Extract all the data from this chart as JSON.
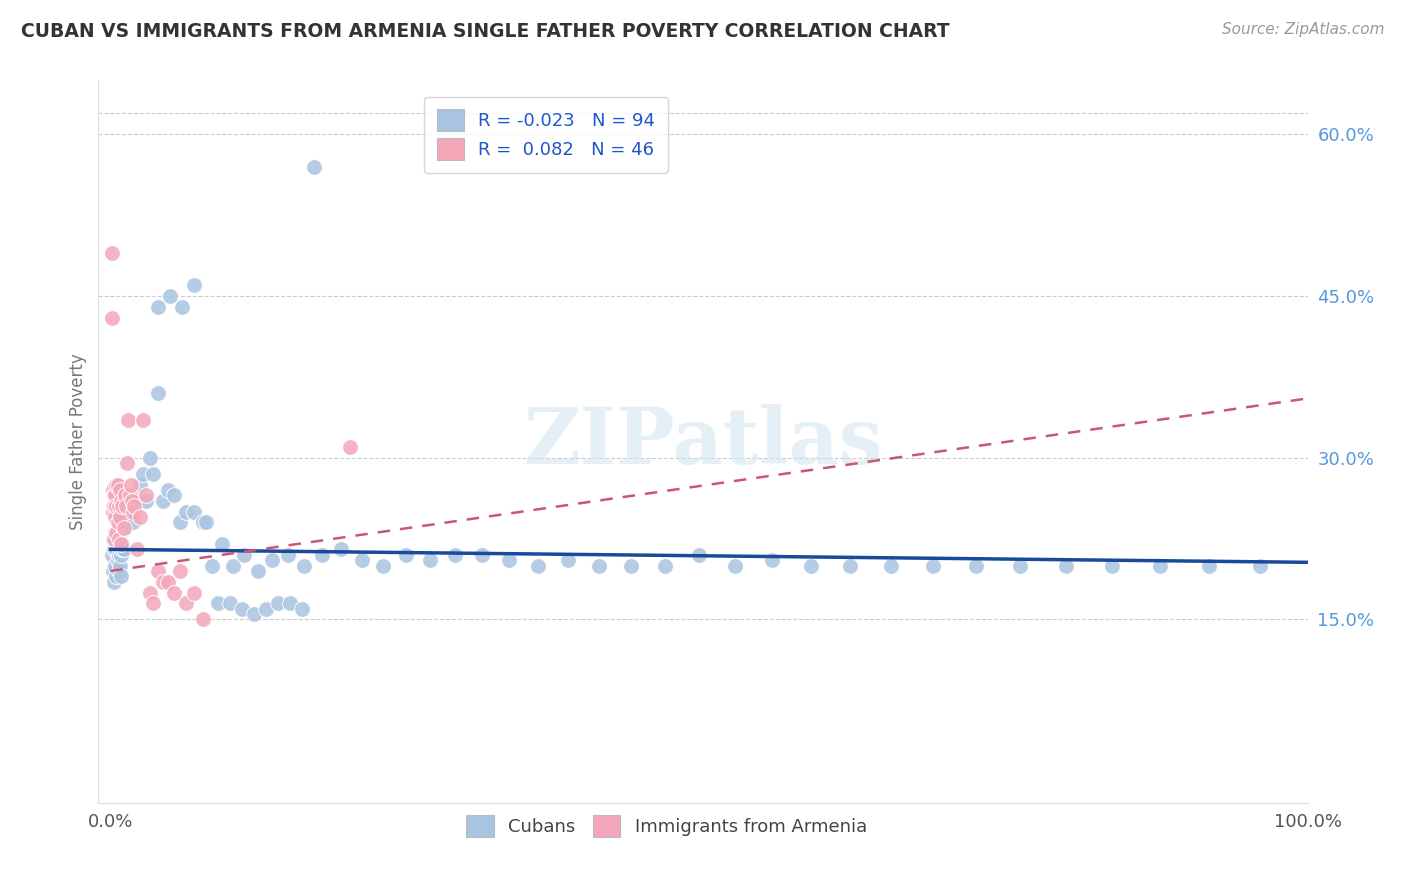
{
  "title": "CUBAN VS IMMIGRANTS FROM ARMENIA SINGLE FATHER POVERTY CORRELATION CHART",
  "source": "Source: ZipAtlas.com",
  "ylabel": "Single Father Poverty",
  "xlim": [
    -0.01,
    1.0
  ],
  "ylim": [
    -0.02,
    0.65
  ],
  "ytick_vals_right": [
    0.15,
    0.3,
    0.45,
    0.6
  ],
  "ytick_labels_right": [
    "15.0%",
    "30.0%",
    "45.0%",
    "60.0%"
  ],
  "xtick_positions": [
    0.0,
    0.25,
    0.5,
    0.75,
    1.0
  ],
  "xtick_labels": [
    "0.0%",
    "",
    "",
    "",
    "100.0%"
  ],
  "legend1_label": "R = -0.023   N = 94",
  "legend2_label": "R =  0.082   N = 46",
  "cubans_color": "#a8c4e0",
  "armenia_color": "#f4a7b9",
  "trend_cuba_color": "#1a4a9a",
  "trend_armenia_color": "#cc5577",
  "watermark": "ZIPatlas",
  "cubans_x": [
    0.001,
    0.002,
    0.002,
    0.003,
    0.003,
    0.004,
    0.004,
    0.005,
    0.005,
    0.006,
    0.006,
    0.007,
    0.007,
    0.008,
    0.008,
    0.009,
    0.009,
    0.01,
    0.01,
    0.011,
    0.012,
    0.013,
    0.013,
    0.014,
    0.015,
    0.016,
    0.017,
    0.018,
    0.019,
    0.02,
    0.022,
    0.025,
    0.027,
    0.03,
    0.033,
    0.036,
    0.04,
    0.044,
    0.048,
    0.053,
    0.058,
    0.063,
    0.07,
    0.077,
    0.085,
    0.093,
    0.102,
    0.112,
    0.123,
    0.135,
    0.148,
    0.162,
    0.177,
    0.193,
    0.21,
    0.228,
    0.247,
    0.267,
    0.288,
    0.31,
    0.333,
    0.357,
    0.382,
    0.408,
    0.435,
    0.463,
    0.492,
    0.522,
    0.553,
    0.585,
    0.618,
    0.652,
    0.687,
    0.723,
    0.76,
    0.798,
    0.837,
    0.877,
    0.918,
    0.96,
    0.04,
    0.05,
    0.06,
    0.07,
    0.08,
    0.09,
    0.1,
    0.11,
    0.12,
    0.13,
    0.14,
    0.15,
    0.16,
    0.17
  ],
  "cubans_y": [
    0.21,
    0.195,
    0.225,
    0.185,
    0.215,
    0.2,
    0.23,
    0.19,
    0.215,
    0.205,
    0.225,
    0.195,
    0.21,
    0.2,
    0.22,
    0.19,
    0.21,
    0.215,
    0.22,
    0.215,
    0.235,
    0.26,
    0.26,
    0.255,
    0.265,
    0.26,
    0.25,
    0.26,
    0.24,
    0.265,
    0.26,
    0.275,
    0.285,
    0.26,
    0.3,
    0.285,
    0.36,
    0.26,
    0.27,
    0.265,
    0.24,
    0.25,
    0.25,
    0.24,
    0.2,
    0.22,
    0.2,
    0.21,
    0.195,
    0.205,
    0.21,
    0.2,
    0.21,
    0.215,
    0.205,
    0.2,
    0.21,
    0.205,
    0.21,
    0.21,
    0.205,
    0.2,
    0.205,
    0.2,
    0.2,
    0.2,
    0.21,
    0.2,
    0.205,
    0.2,
    0.2,
    0.2,
    0.2,
    0.2,
    0.2,
    0.2,
    0.2,
    0.2,
    0.2,
    0.2,
    0.44,
    0.45,
    0.44,
    0.46,
    0.24,
    0.165,
    0.165,
    0.16,
    0.155,
    0.16,
    0.165,
    0.165,
    0.16,
    0.57
  ],
  "armenia_x": [
    0.001,
    0.001,
    0.002,
    0.002,
    0.003,
    0.003,
    0.003,
    0.004,
    0.004,
    0.005,
    0.005,
    0.005,
    0.006,
    0.006,
    0.007,
    0.007,
    0.008,
    0.008,
    0.009,
    0.009,
    0.01,
    0.011,
    0.012,
    0.013,
    0.014,
    0.015,
    0.016,
    0.017,
    0.018,
    0.019,
    0.02,
    0.022,
    0.025,
    0.027,
    0.03,
    0.033,
    0.036,
    0.04,
    0.044,
    0.048,
    0.053,
    0.058,
    0.063,
    0.07,
    0.077,
    0.2
  ],
  "armenia_y": [
    0.49,
    0.43,
    0.27,
    0.25,
    0.265,
    0.255,
    0.225,
    0.265,
    0.245,
    0.275,
    0.255,
    0.23,
    0.275,
    0.24,
    0.255,
    0.225,
    0.27,
    0.245,
    0.26,
    0.22,
    0.255,
    0.235,
    0.265,
    0.255,
    0.295,
    0.335,
    0.265,
    0.275,
    0.26,
    0.25,
    0.255,
    0.215,
    0.245,
    0.335,
    0.265,
    0.175,
    0.165,
    0.195,
    0.185,
    0.185,
    0.175,
    0.195,
    0.165,
    0.175,
    0.15,
    0.31
  ],
  "grid_color": "#cccccc",
  "grid_linestyle": "--",
  "background_color": "white"
}
